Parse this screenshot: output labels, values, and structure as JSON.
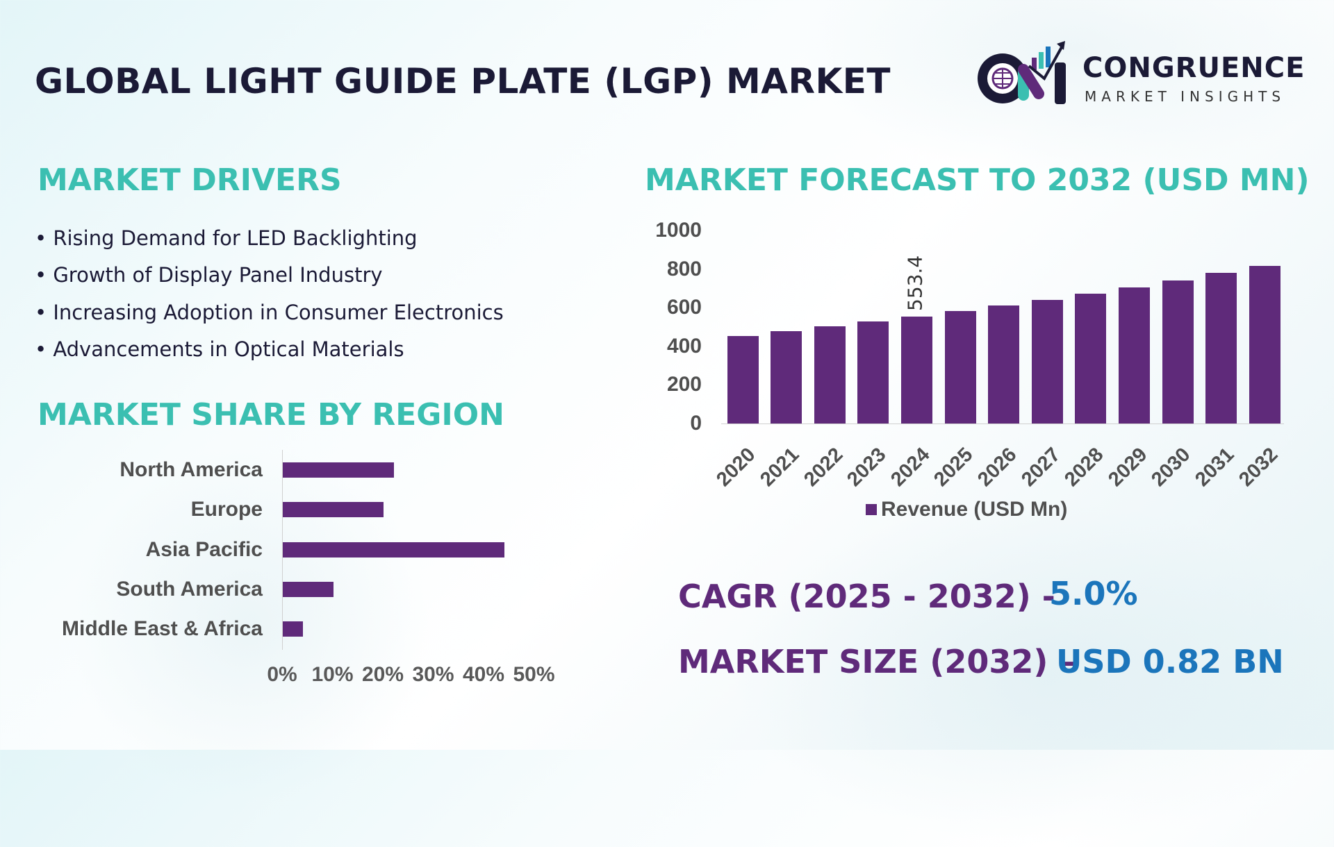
{
  "header": {
    "title": "GLOBAL LIGHT GUIDE PLATE (LGP) MARKET",
    "logo": {
      "name": "CONGRUENCE",
      "tagline": "MARKET INSIGHTS",
      "mark": "CM"
    }
  },
  "drivers": {
    "heading": "MARKET DRIVERS",
    "items": [
      "• Rising Demand for LED Backlighting",
      "• Growth of Display Panel Industry",
      "• Increasing Adoption in Consumer Electronics",
      "• Advancements in Optical Materials"
    ]
  },
  "colors": {
    "bar": "#5f2a7a",
    "heading": "#3bbfb1",
    "kpi_label": "#5f2a7a",
    "kpi_value": "#1b75bb",
    "title": "#1b1a36"
  },
  "chart_data": [
    {
      "type": "bar",
      "orientation": "horizontal",
      "title": "MARKET SHARE BY REGION",
      "categories": [
        "North America",
        "Europe",
        "Asia Pacific",
        "South America",
        "Middle East & Africa"
      ],
      "values": [
        22,
        20,
        44,
        10,
        4
      ],
      "unit": "%",
      "xticks": [
        "0%",
        "10%",
        "20%",
        "30%",
        "40%",
        "50%"
      ],
      "xlim": [
        0,
        50
      ],
      "grid": false
    },
    {
      "type": "bar",
      "title": "MARKET FORECAST TO 2032 (USD MN)",
      "categories": [
        "2020",
        "2021",
        "2022",
        "2023",
        "2024",
        "2025",
        "2026",
        "2027",
        "2028",
        "2029",
        "2030",
        "2031",
        "2032"
      ],
      "series": [
        {
          "name": "Revenue (USD Mn)",
          "values": [
            455,
            478,
            502,
            527,
            553.4,
            581,
            610,
            641,
            673,
            706,
            742,
            779,
            818
          ]
        }
      ],
      "data_labels": [
        {
          "category": "2024",
          "label": "553.4"
        }
      ],
      "yticks": [
        "0",
        "200",
        "400",
        "600",
        "800",
        "1000"
      ],
      "ylim": [
        0,
        1000
      ],
      "grid": false,
      "legend": "bottom"
    }
  ],
  "kpis": {
    "cagr_label": "CAGR (2025 - 2032) -",
    "cagr_value": "5.0%",
    "size_label": "MARKET SIZE (2032) –",
    "size_value": "USD 0.82 BN"
  }
}
